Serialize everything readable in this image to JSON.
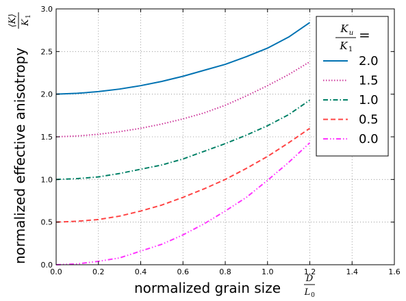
{
  "chart_data": {
    "type": "line",
    "xlabel": "normalized grain size",
    "xlabel_math": {
      "num": "D",
      "den": "L",
      "den_sub": "0"
    },
    "ylabel": "normalized effective anisotropy",
    "ylabel_math": {
      "num": "⟨K⟩",
      "den": "K",
      "den_sub": "1"
    },
    "xlim": [
      0.0,
      1.6
    ],
    "ylim": [
      0.0,
      3.0
    ],
    "xticks": [
      "0.0",
      "0.2",
      "0.4",
      "0.6",
      "0.8",
      "1.0",
      "1.2",
      "1.4",
      "1.6"
    ],
    "yticks": [
      "0.0",
      "0.5",
      "1.0",
      "1.5",
      "2.0",
      "2.5",
      "3.0"
    ],
    "grid": true,
    "legend": {
      "placement": "top-right",
      "title_math": {
        "num": "K",
        "num_sub": "u",
        "den": "K",
        "den_sub": "1",
        "suffix": "="
      }
    },
    "x": [
      0.0,
      0.1,
      0.2,
      0.3,
      0.4,
      0.5,
      0.6,
      0.7,
      0.8,
      0.9,
      1.0,
      1.1,
      1.2
    ],
    "series": [
      {
        "name": "2.0",
        "color": "#0072b2",
        "style": "solid",
        "values": [
          2.0,
          2.01,
          2.03,
          2.06,
          2.1,
          2.15,
          2.21,
          2.28,
          2.35,
          2.44,
          2.54,
          2.67,
          2.84
        ]
      },
      {
        "name": "1.5",
        "color": "#cc3399",
        "style": "dotted",
        "values": [
          1.5,
          1.51,
          1.53,
          1.56,
          1.6,
          1.65,
          1.71,
          1.78,
          1.87,
          1.98,
          2.1,
          2.23,
          2.38
        ]
      },
      {
        "name": "1.0",
        "color": "#008066",
        "style": "dashdot",
        "values": [
          1.0,
          1.01,
          1.03,
          1.07,
          1.12,
          1.17,
          1.24,
          1.33,
          1.42,
          1.52,
          1.63,
          1.76,
          1.93
        ]
      },
      {
        "name": "0.5",
        "color": "#ff4444",
        "style": "dashed",
        "values": [
          0.5,
          0.51,
          0.53,
          0.57,
          0.63,
          0.7,
          0.79,
          0.89,
          1.0,
          1.13,
          1.27,
          1.43,
          1.6
        ]
      },
      {
        "name": "0.0",
        "color": "#ff33ff",
        "style": "dashdotdot",
        "values": [
          0.0,
          0.01,
          0.04,
          0.08,
          0.16,
          0.24,
          0.35,
          0.48,
          0.63,
          0.79,
          0.99,
          1.2,
          1.43
        ]
      }
    ]
  }
}
